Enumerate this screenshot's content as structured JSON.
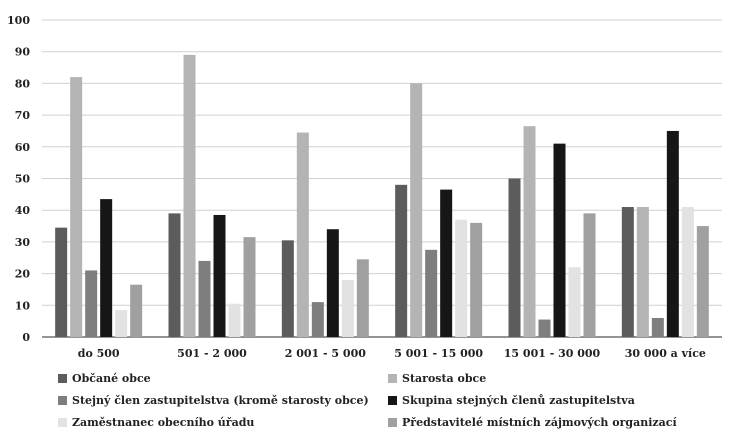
{
  "chart_data": {
    "type": "bar",
    "title": "",
    "xlabel": "",
    "ylabel": "",
    "ylim": [
      0,
      100
    ],
    "yticks": [
      0,
      10,
      20,
      30,
      40,
      50,
      60,
      70,
      80,
      90,
      100
    ],
    "grid": true,
    "legend_position": "bottom",
    "categories": [
      "do 500",
      "501 - 2 000",
      "2 001 - 5 000",
      "5 001 - 15 000",
      "15 001 - 30 000",
      "30 000 a více"
    ],
    "series": [
      {
        "name": "Občané obce",
        "color": "#5c5c5c",
        "values": [
          34.5,
          39,
          30.5,
          48,
          50,
          41
        ]
      },
      {
        "name": "Starosta obce",
        "color": "#b4b4b4",
        "values": [
          82,
          89,
          64.5,
          80,
          66.5,
          41
        ]
      },
      {
        "name": "Stejný člen zastupitelstva (kromě starosty obce)",
        "color": "#7e7e7e",
        "values": [
          21,
          24,
          11,
          27.5,
          5.5,
          6
        ]
      },
      {
        "name": "Skupina stejných členů zastupitelstva",
        "color": "#161616",
        "values": [
          43.5,
          38.5,
          34,
          46.5,
          61,
          65
        ]
      },
      {
        "name": "Zaměstnanec obecního úřadu",
        "color": "#e2e2e2",
        "values": [
          8.5,
          10.5,
          18,
          37,
          22,
          41
        ]
      },
      {
        "name": "Představitelé místních zájmových organizací",
        "color": "#a0a0a0",
        "values": [
          16.5,
          31.5,
          24.5,
          36,
          39,
          35
        ]
      }
    ]
  }
}
